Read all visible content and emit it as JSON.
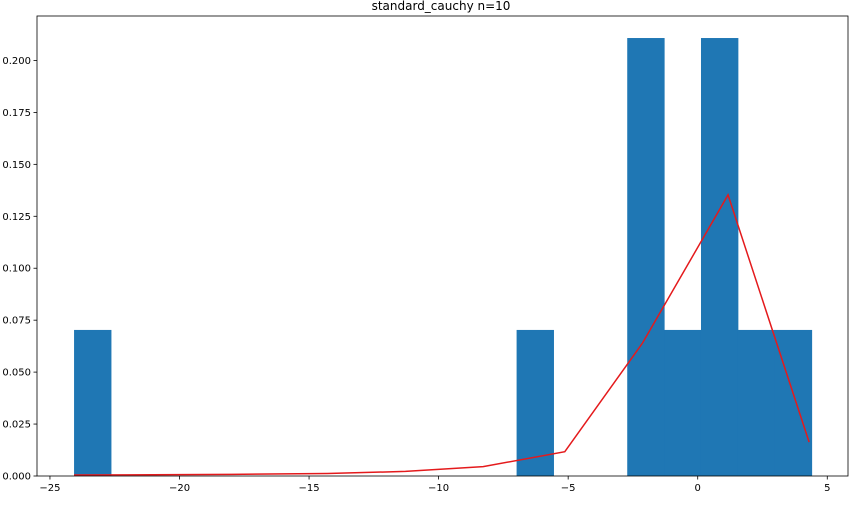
{
  "chart_data": {
    "type": "bar",
    "title": "standard_cauchy n=10",
    "xlabel": "",
    "ylabel": "",
    "xlim": [
      -25.5,
      5.8
    ],
    "ylim": [
      0,
      0.2214
    ],
    "grid": false,
    "x_ticks": [
      -25,
      -20,
      -15,
      -10,
      -5,
      0,
      5
    ],
    "x_tick_labels": [
      "−25",
      "−20",
      "−15",
      "−10",
      "−5",
      "0",
      "5"
    ],
    "y_ticks": [
      0.0,
      0.025,
      0.05,
      0.075,
      0.1,
      0.125,
      0.15,
      0.175,
      0.2
    ],
    "y_tick_labels": [
      "0.000",
      "0.025",
      "0.050",
      "0.075",
      "0.100",
      "0.125",
      "0.150",
      "0.175",
      "0.200"
    ],
    "histogram": {
      "color": "#1f77b4",
      "bin_start": -24.07,
      "bin_width": 1.4233,
      "counts_density": [
        0.0703,
        0,
        0,
        0,
        0,
        0,
        0,
        0,
        0,
        0,
        0,
        0,
        0.0703,
        0,
        0,
        0.2108,
        0.0703,
        0.2108,
        0.0703,
        0.0703
      ]
    },
    "series": [
      {
        "type": "line",
        "color": "#e41a1c",
        "x": [
          -24.07,
          -21.02,
          -17.98,
          -14.29,
          -11.28,
          -8.28,
          -5.13,
          -2.13,
          1.17,
          4.3
        ],
        "y": [
          0.0005,
          0.0006,
          0.0008,
          0.0012,
          0.0022,
          0.0045,
          0.0117,
          0.064,
          0.1353,
          0.0163
        ]
      }
    ]
  }
}
